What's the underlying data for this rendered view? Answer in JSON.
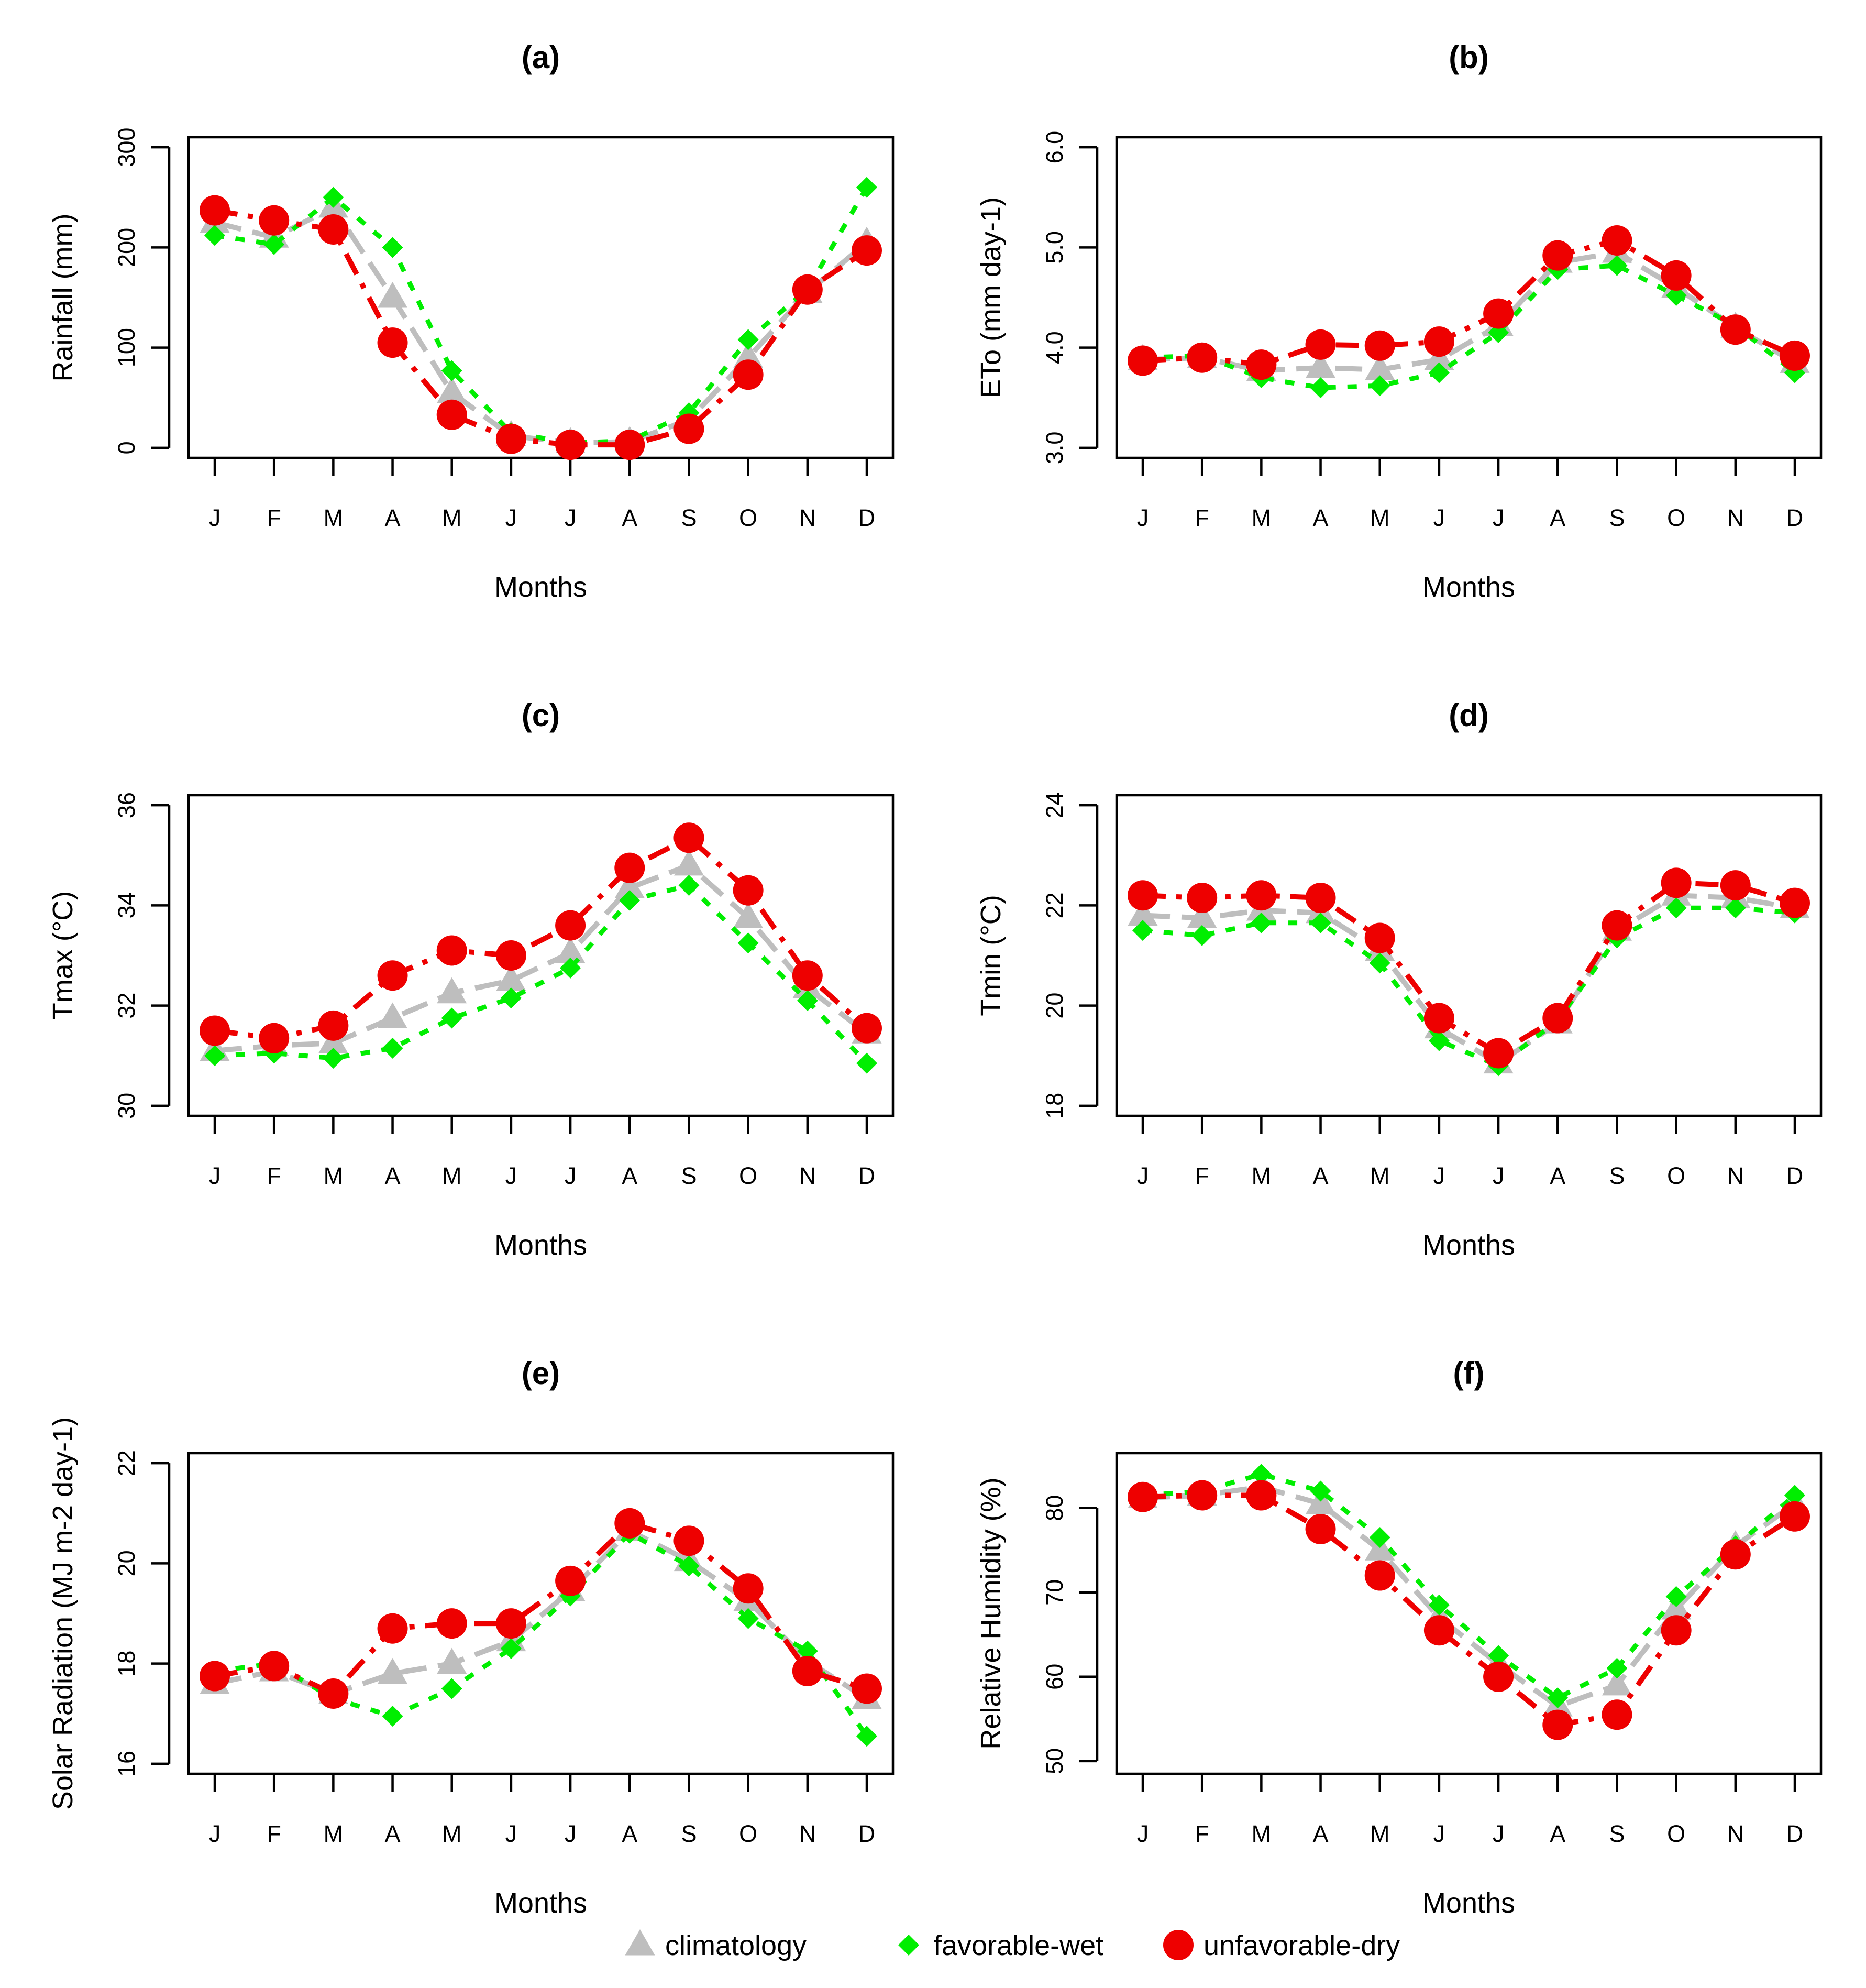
{
  "legend": {
    "items": [
      {
        "label": "climatology",
        "color": "#BEBEBE",
        "marker": "triangle"
      },
      {
        "label": "favorable-wet",
        "color": "#00EE00",
        "marker": "diamond"
      },
      {
        "label": "unfavorable-dry",
        "color": "#EE0000",
        "marker": "circle"
      }
    ]
  },
  "chart_data": [
    {
      "type": "line",
      "title": "(a)",
      "xlabel": "Months",
      "ylabel": "Rainfall (mm)",
      "categories": [
        "J",
        "F",
        "M",
        "A",
        "M",
        "J",
        "J",
        "A",
        "S",
        "O",
        "N",
        "D"
      ],
      "ylim": [
        -10,
        310
      ],
      "yticks": [
        0,
        100,
        200,
        300
      ],
      "ytick_labels": [
        "0",
        "100",
        "200",
        "300"
      ],
      "series": [
        {
          "name": "climatology",
          "values": [
            225,
            210,
            240,
            150,
            55,
            12,
            5,
            6,
            28,
            90,
            155,
            205
          ]
        },
        {
          "name": "favorable-wet",
          "values": [
            212,
            203,
            250,
            200,
            77,
            15,
            5,
            7,
            35,
            108,
            158,
            260
          ]
        },
        {
          "name": "unfavorable-dry",
          "values": [
            237,
            227,
            218,
            105,
            33,
            9,
            3,
            3,
            19,
            73,
            158,
            197
          ]
        }
      ]
    },
    {
      "type": "line",
      "title": "(b)",
      "xlabel": "Months",
      "ylabel": "ETo (mm day-1)",
      "categories": [
        "J",
        "F",
        "M",
        "A",
        "M",
        "J",
        "J",
        "A",
        "S",
        "O",
        "N",
        "D"
      ],
      "ylim": [
        2.9,
        6.1
      ],
      "yticks": [
        3,
        4,
        5,
        6
      ],
      "ytick_labels": [
        "3.0",
        "4.0",
        "5.0",
        "6.0"
      ],
      "series": [
        {
          "name": "climatology",
          "values": [
            3.88,
            3.9,
            3.77,
            3.8,
            3.78,
            3.88,
            4.22,
            4.85,
            4.95,
            4.6,
            4.2,
            3.85
          ]
        },
        {
          "name": "favorable-wet",
          "values": [
            3.9,
            3.92,
            3.7,
            3.6,
            3.62,
            3.75,
            4.15,
            4.78,
            4.82,
            4.52,
            4.22,
            3.75
          ]
        },
        {
          "name": "unfavorable-dry",
          "values": [
            3.87,
            3.9,
            3.83,
            4.03,
            4.02,
            4.06,
            4.34,
            4.92,
            5.07,
            4.72,
            4.18,
            3.92
          ]
        }
      ]
    },
    {
      "type": "line",
      "title": "(c)",
      "xlabel": "Months",
      "ylabel": "Tmax (°C)",
      "categories": [
        "J",
        "F",
        "M",
        "A",
        "M",
        "J",
        "J",
        "A",
        "S",
        "O",
        "N",
        "D"
      ],
      "ylim": [
        29.8,
        36.2
      ],
      "yticks": [
        30,
        32,
        34,
        36
      ],
      "ytick_labels": [
        "30",
        "32",
        "34",
        "36"
      ],
      "series": [
        {
          "name": "climatology",
          "values": [
            31.1,
            31.2,
            31.25,
            31.75,
            32.25,
            32.5,
            33.05,
            34.35,
            34.8,
            33.75,
            32.35,
            31.45
          ]
        },
        {
          "name": "favorable-wet",
          "values": [
            31.0,
            31.05,
            30.95,
            31.15,
            31.75,
            32.15,
            32.75,
            34.1,
            34.4,
            33.25,
            32.1,
            30.85
          ]
        },
        {
          "name": "unfavorable-dry",
          "values": [
            31.5,
            31.35,
            31.6,
            32.6,
            33.1,
            33.0,
            33.6,
            34.75,
            35.35,
            34.3,
            32.6,
            31.55
          ]
        }
      ]
    },
    {
      "type": "line",
      "title": "(d)",
      "xlabel": "Months",
      "ylabel": "Tmin (°C)",
      "categories": [
        "J",
        "F",
        "M",
        "A",
        "M",
        "J",
        "J",
        "A",
        "S",
        "O",
        "N",
        "D"
      ],
      "ylim": [
        17.8,
        24.2
      ],
      "yticks": [
        18,
        20,
        22,
        24
      ],
      "ytick_labels": [
        "18",
        "20",
        "22",
        "24"
      ],
      "series": [
        {
          "name": "climatology",
          "values": [
            21.8,
            21.75,
            21.9,
            21.85,
            21.1,
            19.55,
            18.85,
            19.65,
            21.5,
            22.2,
            22.15,
            21.95
          ]
        },
        {
          "name": "favorable-wet",
          "values": [
            21.5,
            21.4,
            21.65,
            21.65,
            20.85,
            19.3,
            18.8,
            19.7,
            21.35,
            21.95,
            21.95,
            21.85
          ]
        },
        {
          "name": "unfavorable-dry",
          "values": [
            22.2,
            22.15,
            22.2,
            22.15,
            21.35,
            19.75,
            19.05,
            19.75,
            21.6,
            22.45,
            22.4,
            22.05
          ]
        }
      ]
    },
    {
      "type": "line",
      "title": "(e)",
      "xlabel": "Months",
      "ylabel": "Solar Radiation (MJ m-2 day-1)",
      "categories": [
        "J",
        "F",
        "M",
        "A",
        "M",
        "J",
        "J",
        "A",
        "S",
        "O",
        "N",
        "D"
      ],
      "ylim": [
        15.8,
        22.2
      ],
      "yticks": [
        16,
        18,
        20,
        22
      ],
      "ytick_labels": [
        "16",
        "18",
        "20",
        "22"
      ],
      "series": [
        {
          "name": "climatology",
          "values": [
            17.6,
            17.85,
            17.4,
            17.8,
            18.0,
            18.45,
            19.45,
            20.65,
            20.05,
            19.25,
            18.05,
            17.3
          ]
        },
        {
          "name": "favorable-wet",
          "values": [
            17.85,
            18.0,
            17.3,
            16.95,
            17.5,
            18.3,
            19.35,
            20.6,
            19.95,
            18.9,
            18.25,
            16.55
          ]
        },
        {
          "name": "unfavorable-dry",
          "values": [
            17.75,
            17.95,
            17.4,
            18.7,
            18.8,
            18.8,
            19.65,
            20.8,
            20.45,
            19.5,
            17.85,
            17.5
          ]
        }
      ]
    },
    {
      "type": "line",
      "title": "(f)",
      "xlabel": "Months",
      "ylabel": "Relative Humidity (%)",
      "categories": [
        "J",
        "F",
        "M",
        "A",
        "M",
        "J",
        "J",
        "A",
        "S",
        "O",
        "N",
        "D"
      ],
      "ylim": [
        48.5,
        86.5
      ],
      "yticks": [
        50,
        60,
        70,
        80
      ],
      "ytick_labels": [
        "50",
        "60",
        "70",
        "80"
      ],
      "series": [
        {
          "name": "climatology",
          "values": [
            81.2,
            81.5,
            82.5,
            80.5,
            75.0,
            67.0,
            61.5,
            56.5,
            59.0,
            68.0,
            75.5,
            80.5
          ]
        },
        {
          "name": "favorable-wet",
          "values": [
            81.5,
            82.0,
            84.0,
            82.0,
            76.5,
            68.5,
            62.5,
            57.5,
            61.0,
            69.5,
            75.5,
            81.5
          ]
        },
        {
          "name": "unfavorable-dry",
          "values": [
            81.3,
            81.5,
            81.5,
            77.5,
            72.0,
            65.5,
            60.0,
            54.3,
            55.5,
            65.5,
            74.5,
            79.0
          ]
        }
      ]
    }
  ]
}
